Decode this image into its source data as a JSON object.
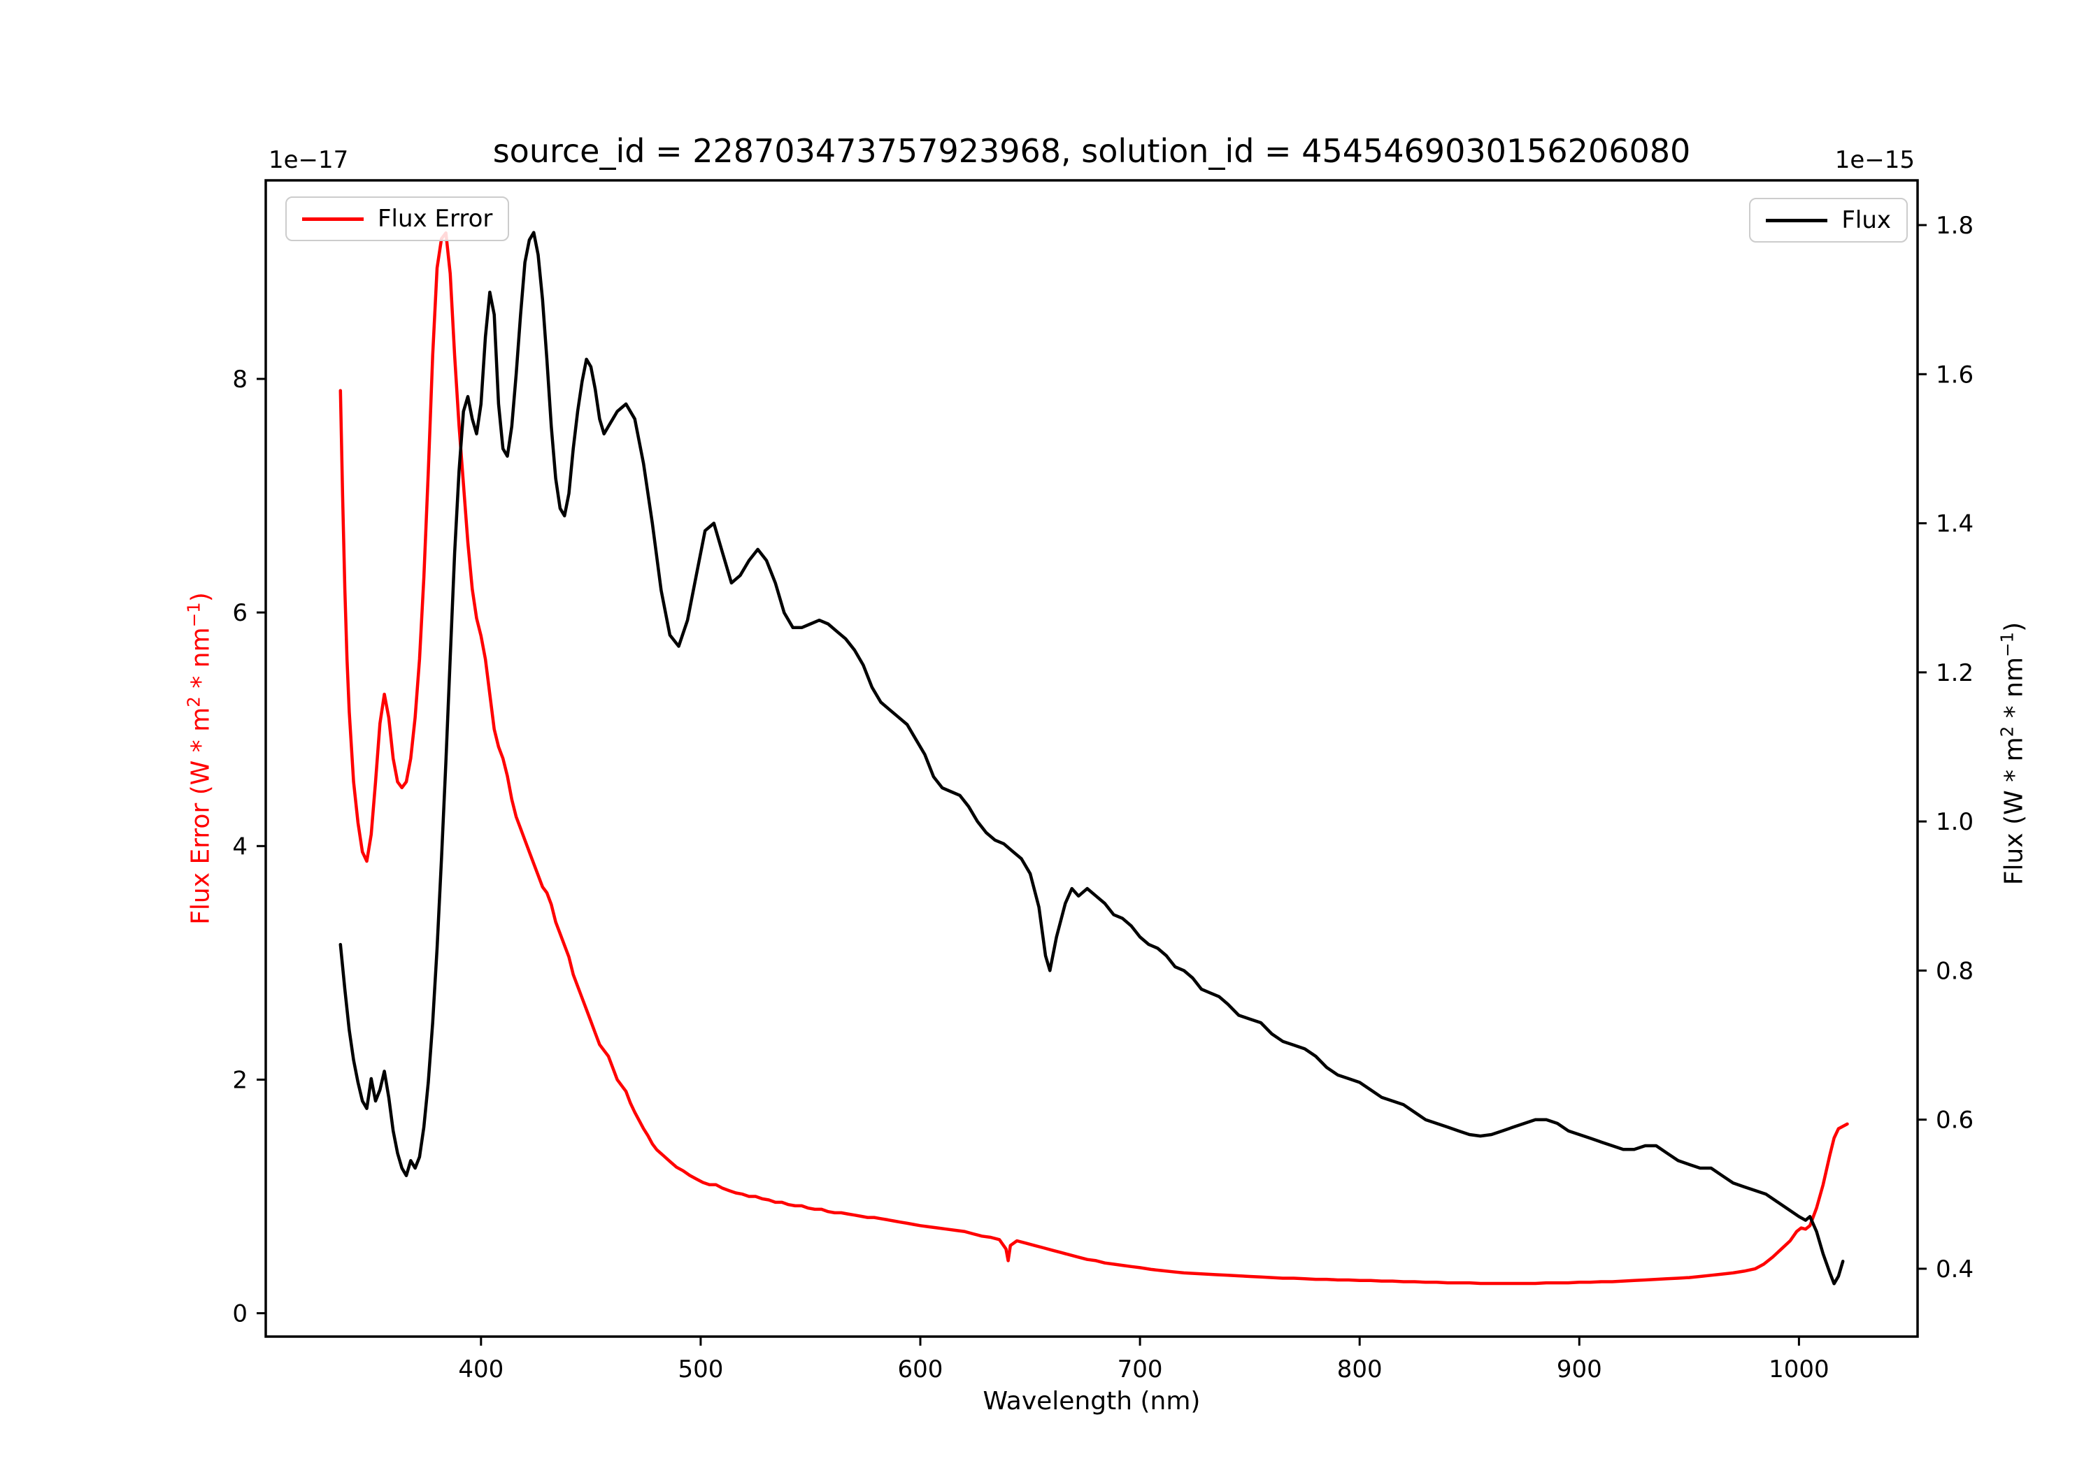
{
  "legend": {
    "flux_error": "Flux Error",
    "flux": "Flux"
  },
  "labels": {
    "left": {
      "p1": "Flux Error (W * m",
      "s1": "2",
      "p2": " * nm",
      "s2": "−1",
      "p3": ")"
    },
    "right": {
      "p1": "Flux (W * m",
      "s1": "2",
      "p2": " * nm",
      "s2": "−1",
      "p3": ")"
    }
  },
  "chart_data": {
    "type": "line",
    "title": "source_id = 228703473757923968, solution_id = 4545469030156206080",
    "xlabel": "Wavelength (nm)",
    "ylabel_left": "Flux Error (W * m^2 * nm^-1)",
    "ylabel_right": "Flux (W * m^2 * nm^-1)",
    "left_offset_label": "1e−17",
    "right_offset_label": "1e−15",
    "grid": false,
    "legend_positions": [
      "upper left",
      "upper right"
    ],
    "xlim": [
      302,
      1054
    ],
    "ylim_left": [
      -0.2,
      9.7
    ],
    "ylim_right": [
      0.309,
      1.86
    ],
    "x_ticks": [
      400,
      500,
      600,
      700,
      800,
      900,
      1000
    ],
    "x_tick_labels": [
      "400",
      "500",
      "600",
      "700",
      "800",
      "900",
      "1000"
    ],
    "left_ticks": [
      0,
      2,
      4,
      6,
      8
    ],
    "left_tick_labels": [
      "0",
      "2",
      "4",
      "6",
      "8"
    ],
    "left_tick_color": "#ff0000",
    "right_ticks": [
      0.4,
      0.6,
      0.8,
      1.0,
      1.2,
      1.4,
      1.6,
      1.8
    ],
    "right_tick_labels": [
      "0.4",
      "0.6",
      "0.8",
      "1.0",
      "1.2",
      "1.4",
      "1.6",
      "1.8"
    ],
    "right_tick_color": "#000000",
    "series": [
      {
        "name": "Flux Error",
        "axis": "left",
        "color": "#ff0000",
        "units_scale": "1e-17",
        "x": [
          336,
          337,
          338,
          339,
          340,
          342,
          344,
          346,
          348,
          350,
          352,
          354,
          356,
          358,
          360,
          362,
          364,
          366,
          368,
          370,
          372,
          374,
          376,
          378,
          380,
          382,
          384,
          386,
          388,
          390,
          392,
          394,
          396,
          398,
          400,
          402,
          404,
          406,
          408,
          410,
          412,
          414,
          416,
          418,
          420,
          422,
          424,
          426,
          428,
          430,
          432,
          434,
          436,
          438,
          440,
          442,
          444,
          446,
          448,
          450,
          452,
          454,
          456,
          458,
          460,
          462,
          464,
          466,
          468,
          470,
          472,
          474,
          476,
          478,
          480,
          483,
          486,
          489,
          492,
          495,
          498,
          501,
          504,
          507,
          510,
          513,
          516,
          519,
          522,
          525,
          528,
          531,
          534,
          537,
          540,
          543,
          546,
          549,
          552,
          555,
          558,
          561,
          564,
          567,
          570,
          573,
          576,
          579,
          582,
          585,
          588,
          591,
          594,
          597,
          600,
          604,
          608,
          612,
          616,
          620,
          624,
          628,
          632,
          636,
          639,
          640,
          641,
          644,
          648,
          652,
          656,
          660,
          664,
          668,
          672,
          676,
          680,
          684,
          688,
          692,
          696,
          700,
          705,
          710,
          715,
          720,
          725,
          730,
          735,
          740,
          745,
          750,
          755,
          760,
          765,
          770,
          775,
          780,
          785,
          790,
          795,
          800,
          805,
          810,
          815,
          820,
          825,
          830,
          835,
          840,
          845,
          850,
          855,
          860,
          865,
          870,
          875,
          880,
          885,
          890,
          895,
          900,
          905,
          910,
          915,
          920,
          925,
          930,
          935,
          940,
          945,
          950,
          955,
          960,
          965,
          970,
          975,
          980,
          984,
          988,
          992,
          996,
          999,
          1001,
          1003,
          1005,
          1008,
          1011,
          1014,
          1016,
          1018,
          1020,
          1022
        ],
        "y": [
          7.9,
          7.0,
          6.2,
          5.6,
          5.15,
          4.55,
          4.2,
          3.95,
          3.87,
          4.1,
          4.55,
          5.05,
          5.3,
          5.1,
          4.75,
          4.55,
          4.5,
          4.55,
          4.75,
          5.1,
          5.6,
          6.3,
          7.2,
          8.2,
          8.95,
          9.2,
          9.25,
          8.9,
          8.2,
          7.6,
          7.1,
          6.6,
          6.2,
          5.95,
          5.8,
          5.6,
          5.3,
          5.0,
          4.85,
          4.75,
          4.6,
          4.4,
          4.25,
          4.15,
          4.05,
          3.95,
          3.85,
          3.75,
          3.65,
          3.6,
          3.5,
          3.35,
          3.25,
          3.15,
          3.05,
          2.9,
          2.8,
          2.7,
          2.6,
          2.5,
          2.4,
          2.3,
          2.25,
          2.2,
          2.1,
          2.0,
          1.95,
          1.9,
          1.8,
          1.72,
          1.65,
          1.58,
          1.52,
          1.45,
          1.4,
          1.35,
          1.3,
          1.25,
          1.22,
          1.18,
          1.15,
          1.12,
          1.1,
          1.1,
          1.07,
          1.05,
          1.03,
          1.02,
          1.0,
          1.0,
          0.98,
          0.97,
          0.95,
          0.95,
          0.93,
          0.92,
          0.92,
          0.9,
          0.89,
          0.89,
          0.87,
          0.86,
          0.86,
          0.85,
          0.84,
          0.83,
          0.82,
          0.82,
          0.81,
          0.8,
          0.79,
          0.78,
          0.77,
          0.76,
          0.75,
          0.74,
          0.73,
          0.72,
          0.71,
          0.7,
          0.68,
          0.66,
          0.65,
          0.63,
          0.55,
          0.45,
          0.58,
          0.62,
          0.6,
          0.58,
          0.56,
          0.54,
          0.52,
          0.5,
          0.48,
          0.46,
          0.45,
          0.43,
          0.42,
          0.41,
          0.4,
          0.39,
          0.375,
          0.365,
          0.355,
          0.345,
          0.34,
          0.335,
          0.33,
          0.325,
          0.32,
          0.315,
          0.31,
          0.305,
          0.3,
          0.3,
          0.295,
          0.29,
          0.29,
          0.285,
          0.285,
          0.28,
          0.28,
          0.275,
          0.275,
          0.27,
          0.27,
          0.265,
          0.265,
          0.26,
          0.26,
          0.26,
          0.255,
          0.255,
          0.255,
          0.255,
          0.255,
          0.255,
          0.26,
          0.26,
          0.26,
          0.265,
          0.265,
          0.27,
          0.27,
          0.275,
          0.28,
          0.285,
          0.29,
          0.295,
          0.3,
          0.305,
          0.315,
          0.325,
          0.335,
          0.345,
          0.36,
          0.38,
          0.42,
          0.48,
          0.55,
          0.62,
          0.7,
          0.73,
          0.72,
          0.75,
          0.9,
          1.1,
          1.35,
          1.5,
          1.58,
          1.6,
          1.62
        ]
      },
      {
        "name": "Flux",
        "axis": "right",
        "color": "#000000",
        "units_scale": "1e-15",
        "x": [
          336,
          338,
          340,
          342,
          344,
          346,
          348,
          350,
          352,
          354,
          356,
          358,
          360,
          362,
          364,
          366,
          368,
          370,
          372,
          374,
          376,
          378,
          380,
          382,
          384,
          386,
          388,
          390,
          392,
          394,
          396,
          398,
          400,
          402,
          404,
          406,
          408,
          410,
          412,
          414,
          416,
          418,
          420,
          422,
          424,
          426,
          428,
          430,
          432,
          434,
          436,
          438,
          440,
          442,
          444,
          446,
          448,
          450,
          452,
          454,
          456,
          458,
          460,
          462,
          466,
          470,
          474,
          478,
          482,
          486,
          490,
          494,
          498,
          502,
          506,
          510,
          514,
          518,
          522,
          526,
          530,
          534,
          538,
          542,
          546,
          550,
          554,
          558,
          562,
          566,
          570,
          574,
          578,
          582,
          586,
          590,
          594,
          598,
          602,
          606,
          610,
          614,
          618,
          622,
          626,
          630,
          634,
          638,
          642,
          646,
          650,
          654,
          657,
          659,
          662,
          666,
          669,
          672,
          676,
          680,
          684,
          688,
          692,
          696,
          700,
          704,
          708,
          712,
          716,
          720,
          724,
          728,
          732,
          736,
          740,
          745,
          750,
          755,
          760,
          765,
          770,
          775,
          780,
          785,
          790,
          795,
          800,
          805,
          810,
          815,
          820,
          825,
          830,
          835,
          840,
          845,
          850,
          855,
          860,
          865,
          870,
          875,
          880,
          885,
          890,
          895,
          900,
          905,
          910,
          915,
          920,
          925,
          930,
          935,
          940,
          945,
          950,
          955,
          960,
          965,
          970,
          975,
          980,
          985,
          990,
          995,
          1000,
          1003,
          1005,
          1008,
          1011,
          1014,
          1016,
          1018,
          1020
        ],
        "y": [
          0.835,
          0.775,
          0.72,
          0.68,
          0.65,
          0.625,
          0.615,
          0.655,
          0.625,
          0.64,
          0.665,
          0.63,
          0.585,
          0.555,
          0.535,
          0.525,
          0.545,
          0.535,
          0.55,
          0.59,
          0.65,
          0.73,
          0.83,
          0.95,
          1.08,
          1.22,
          1.36,
          1.47,
          1.55,
          1.57,
          1.54,
          1.52,
          1.56,
          1.65,
          1.71,
          1.68,
          1.56,
          1.5,
          1.49,
          1.53,
          1.6,
          1.68,
          1.75,
          1.78,
          1.79,
          1.76,
          1.7,
          1.62,
          1.53,
          1.46,
          1.42,
          1.41,
          1.44,
          1.5,
          1.55,
          1.59,
          1.62,
          1.61,
          1.58,
          1.54,
          1.52,
          1.53,
          1.54,
          1.55,
          1.56,
          1.54,
          1.48,
          1.4,
          1.31,
          1.25,
          1.235,
          1.27,
          1.33,
          1.39,
          1.4,
          1.36,
          1.32,
          1.33,
          1.35,
          1.365,
          1.35,
          1.32,
          1.28,
          1.26,
          1.26,
          1.265,
          1.27,
          1.265,
          1.255,
          1.245,
          1.23,
          1.21,
          1.18,
          1.16,
          1.15,
          1.14,
          1.13,
          1.11,
          1.09,
          1.06,
          1.045,
          1.04,
          1.035,
          1.02,
          1.0,
          0.985,
          0.975,
          0.97,
          0.96,
          0.95,
          0.93,
          0.885,
          0.82,
          0.8,
          0.845,
          0.89,
          0.91,
          0.9,
          0.91,
          0.9,
          0.89,
          0.875,
          0.87,
          0.86,
          0.845,
          0.835,
          0.83,
          0.82,
          0.805,
          0.8,
          0.79,
          0.775,
          0.77,
          0.765,
          0.755,
          0.74,
          0.735,
          0.73,
          0.715,
          0.705,
          0.7,
          0.695,
          0.685,
          0.67,
          0.66,
          0.655,
          0.65,
          0.64,
          0.63,
          0.625,
          0.62,
          0.61,
          0.6,
          0.595,
          0.59,
          0.585,
          0.58,
          0.578,
          0.58,
          0.585,
          0.59,
          0.595,
          0.6,
          0.6,
          0.595,
          0.585,
          0.58,
          0.575,
          0.57,
          0.565,
          0.56,
          0.56,
          0.565,
          0.565,
          0.555,
          0.545,
          0.54,
          0.535,
          0.535,
          0.525,
          0.515,
          0.51,
          0.505,
          0.5,
          0.49,
          0.48,
          0.47,
          0.465,
          0.47,
          0.45,
          0.42,
          0.395,
          0.38,
          0.39,
          0.41
        ]
      }
    ]
  }
}
